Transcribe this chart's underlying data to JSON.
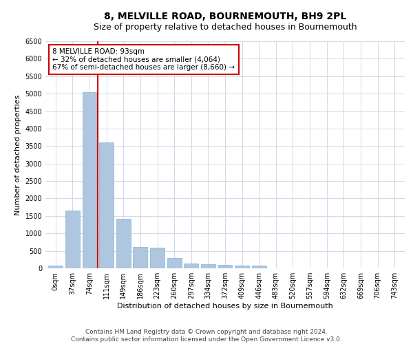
{
  "title": "8, MELVILLE ROAD, BOURNEMOUTH, BH9 2PL",
  "subtitle": "Size of property relative to detached houses in Bournemouth",
  "xlabel": "Distribution of detached houses by size in Bournemouth",
  "ylabel": "Number of detached properties",
  "footer_line1": "Contains HM Land Registry data © Crown copyright and database right 2024.",
  "footer_line2": "Contains public sector information licensed under the Open Government Licence v3.0.",
  "bar_labels": [
    "0sqm",
    "37sqm",
    "74sqm",
    "111sqm",
    "149sqm",
    "186sqm",
    "223sqm",
    "260sqm",
    "297sqm",
    "334sqm",
    "372sqm",
    "409sqm",
    "446sqm",
    "483sqm",
    "520sqm",
    "557sqm",
    "594sqm",
    "632sqm",
    "669sqm",
    "706sqm",
    "743sqm"
  ],
  "bar_values": [
    75,
    1650,
    5050,
    3600,
    1420,
    620,
    600,
    290,
    140,
    110,
    90,
    70,
    70,
    0,
    0,
    0,
    0,
    0,
    0,
    0,
    0
  ],
  "bar_color": "#aec6df",
  "bar_edge_color": "#8aafd0",
  "grid_color": "#d0d8e8",
  "annotation_text_line1": "8 MELVILLE ROAD: 93sqm",
  "annotation_text_line2": "← 32% of detached houses are smaller (4,064)",
  "annotation_text_line3": "67% of semi-detached houses are larger (8,660) →",
  "annotation_box_color": "white",
  "annotation_border_color": "#cc0000",
  "vline_color": "#cc0000",
  "ylim_max": 6500,
  "yticks": [
    0,
    500,
    1000,
    1500,
    2000,
    2500,
    3000,
    3500,
    4000,
    4500,
    5000,
    5500,
    6000,
    6500
  ],
  "title_fontsize": 10,
  "subtitle_fontsize": 9,
  "axis_label_fontsize": 8,
  "tick_fontsize": 7,
  "footer_fontsize": 6.5,
  "annotation_fontsize": 7.5
}
